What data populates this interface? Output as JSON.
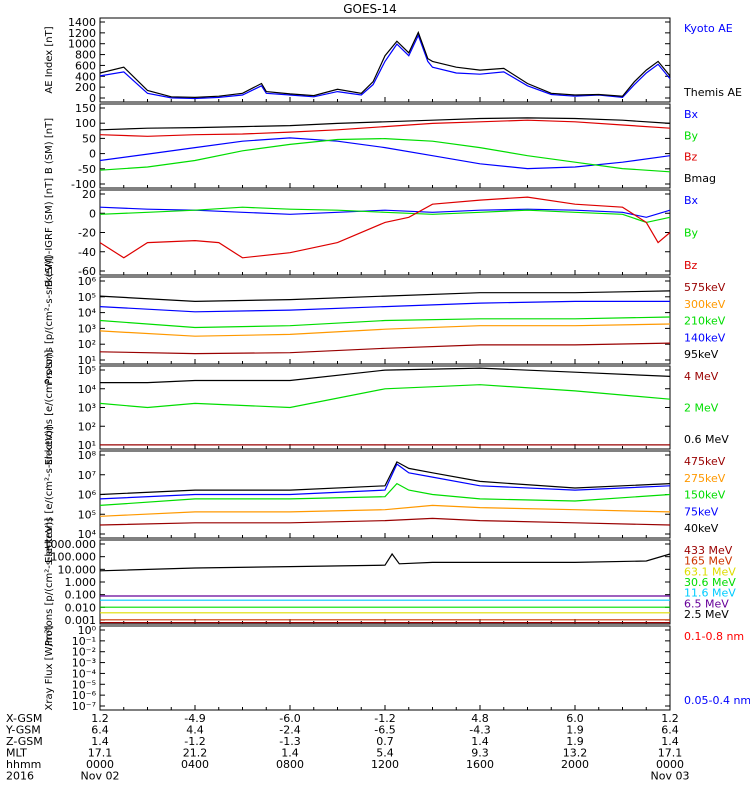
{
  "title": "GOES-14",
  "colors": {
    "black": "#000000",
    "blue": "#0000ff",
    "green": "#00dd00",
    "red": "#dd0000",
    "orange": "#ff9900",
    "darkred": "#990000",
    "cyan": "#00ccff",
    "yellow": "#dddd00",
    "brownred": "#cc3300",
    "purple": "#660099",
    "xray_red": "#ff0000",
    "xray_blue": "#0000ff"
  },
  "chart_data": [
    {
      "type": "line",
      "ylabel": "AE Index [nT]",
      "yticks": [
        "1400",
        "1200",
        "1000",
        "800",
        "600",
        "400",
        "200",
        "0"
      ],
      "ylim": [
        0,
        1450
      ],
      "legend": [
        "Kyoto AE",
        "Themis AE"
      ],
      "series": [
        {
          "name": "Kyoto AE",
          "color": "blue",
          "x": [
            0,
            1,
            2,
            3,
            4,
            5,
            6,
            6.8,
            7,
            8,
            9,
            10,
            11,
            11.5,
            12,
            12.5,
            13,
            13.4,
            13.8,
            14,
            15,
            16,
            17,
            18,
            19,
            20,
            21,
            22,
            22.5,
            23,
            23.5,
            24
          ],
          "y": [
            450,
            520,
            150,
            70,
            60,
            80,
            120,
            280,
            150,
            120,
            90,
            180,
            120,
            300,
            700,
            1000,
            800,
            1150,
            700,
            600,
            500,
            480,
            520,
            280,
            130,
            100,
            120,
            80,
            300,
            500,
            650,
            400
          ]
        },
        {
          "name": "Themis AE",
          "color": "black",
          "x": [
            0,
            1,
            2,
            3,
            4,
            5,
            6,
            6.8,
            7,
            8,
            9,
            10,
            11,
            11.5,
            12,
            12.5,
            13,
            13.4,
            13.8,
            14,
            15,
            16,
            17,
            18,
            19,
            20,
            21,
            22,
            22.5,
            23,
            23.5,
            24
          ],
          "y": [
            500,
            600,
            200,
            90,
            80,
            100,
            150,
            320,
            180,
            140,
            110,
            220,
            150,
            350,
            800,
            1050,
            850,
            1200,
            750,
            700,
            600,
            550,
            580,
            320,
            150,
            120,
            130,
            100,
            350,
            550,
            700,
            450
          ]
        }
      ]
    },
    {
      "type": "line",
      "ylabel": "B (SM) [nT]",
      "yticks": [
        "150",
        "100",
        "50",
        "0",
        "-50",
        "-100"
      ],
      "ylim": [
        -105,
        155
      ],
      "legend": [
        "Bx",
        "By",
        "Bz",
        "Bmag"
      ],
      "series": [
        {
          "name": "Bx",
          "color": "blue",
          "x": [
            0,
            2,
            4,
            6,
            8,
            10,
            12,
            14,
            16,
            18,
            20,
            22,
            24
          ],
          "y": [
            -20,
            0,
            20,
            40,
            50,
            40,
            20,
            -5,
            -30,
            -45,
            -40,
            -25,
            -5
          ]
        },
        {
          "name": "By",
          "color": "green",
          "x": [
            0,
            2,
            4,
            6,
            8,
            10,
            12,
            14,
            16,
            18,
            20,
            22,
            24
          ],
          "y": [
            -50,
            -40,
            -20,
            10,
            30,
            45,
            48,
            40,
            20,
            -5,
            -25,
            -45,
            -55
          ]
        },
        {
          "name": "Bz",
          "color": "red",
          "x": [
            0,
            2,
            4,
            6,
            8,
            10,
            12,
            14,
            16,
            18,
            20,
            22,
            24
          ],
          "y": [
            60,
            55,
            60,
            62,
            68,
            75,
            85,
            95,
            100,
            105,
            100,
            90,
            80
          ]
        },
        {
          "name": "Bmag",
          "color": "black",
          "x": [
            0,
            2,
            4,
            6,
            8,
            10,
            12,
            14,
            16,
            18,
            20,
            22,
            24
          ],
          "y": [
            75,
            80,
            82,
            85,
            88,
            95,
            100,
            105,
            110,
            112,
            110,
            105,
            95
          ]
        }
      ]
    },
    {
      "type": "line",
      "ylabel": "B (SM)-IGRF (SM) [nT]",
      "yticks": [
        "20",
        "0",
        "-20",
        "-40",
        "-60"
      ],
      "ylim": [
        -62,
        22
      ],
      "legend": [
        "Bx",
        "By",
        "Bz"
      ],
      "series": [
        {
          "name": "Bx",
          "color": "blue",
          "x": [
            0,
            2,
            4,
            6,
            8,
            10,
            12,
            14,
            16,
            18,
            20,
            22,
            23,
            24
          ],
          "y": [
            5,
            3,
            2,
            0,
            -2,
            0,
            2,
            0,
            2,
            3,
            2,
            0,
            -5,
            2
          ]
        },
        {
          "name": "By",
          "color": "green",
          "x": [
            0,
            2,
            4,
            6,
            8,
            10,
            12,
            14,
            16,
            18,
            20,
            22,
            23,
            24
          ],
          "y": [
            -2,
            0,
            2,
            5,
            3,
            2,
            0,
            -2,
            0,
            2,
            0,
            -2,
            -10,
            -5
          ]
        },
        {
          "name": "Bz",
          "color": "red",
          "x": [
            0,
            1,
            2,
            4,
            5,
            6,
            8,
            10,
            12,
            13,
            14,
            16,
            18,
            20,
            22,
            23,
            23.5,
            24
          ],
          "y": [
            -30,
            -45,
            -30,
            -28,
            -30,
            -45,
            -40,
            -30,
            -10,
            -5,
            8,
            12,
            15,
            8,
            5,
            -10,
            -30,
            -20
          ]
        }
      ]
    },
    {
      "type": "line",
      "ylabel": "Protons [p/(cm²-s-sr-keV)]",
      "yscale": "log",
      "yticks": [
        "10⁶",
        "10⁵",
        "10⁴",
        "10³",
        "10²",
        "10¹"
      ],
      "ylim": [
        1,
        6
      ],
      "legend": [
        "575keV",
        "300keV",
        "210keV",
        "140keV",
        "95keV"
      ],
      "series": [
        {
          "name": "575keV",
          "color": "darkred",
          "x": [
            0,
            4,
            8,
            12,
            16,
            20,
            24
          ],
          "y": [
            1.7,
            1.6,
            1.65,
            1.9,
            2.1,
            2.1,
            2.2
          ]
        },
        {
          "name": "300keV",
          "color": "orange",
          "x": [
            0,
            4,
            8,
            12,
            16,
            20,
            24
          ],
          "y": [
            2.9,
            2.6,
            2.7,
            3.0,
            3.2,
            3.2,
            3.3
          ]
        },
        {
          "name": "210keV",
          "color": "green",
          "x": [
            0,
            4,
            8,
            12,
            16,
            20,
            24
          ],
          "y": [
            3.5,
            3.1,
            3.2,
            3.5,
            3.6,
            3.6,
            3.7
          ]
        },
        {
          "name": "140keV",
          "color": "blue",
          "x": [
            0,
            4,
            8,
            12,
            16,
            20,
            24
          ],
          "y": [
            4.3,
            4.0,
            4.1,
            4.3,
            4.5,
            4.6,
            4.6
          ]
        },
        {
          "name": "95keV",
          "color": "black",
          "x": [
            0,
            4,
            8,
            12,
            16,
            20,
            24
          ],
          "y": [
            4.9,
            4.6,
            4.7,
            4.9,
            5.1,
            5.1,
            5.2
          ]
        }
      ]
    },
    {
      "type": "line",
      "ylabel": "Electrons [e/(cm²-s-sr)]",
      "yscale": "log",
      "yticks": [
        "10⁵",
        "10⁴",
        "10³",
        "10²",
        "10¹"
      ],
      "ylim": [
        1,
        5
      ],
      "legend": [
        "4 MeV",
        "2 MeV",
        "0.6 MeV"
      ],
      "series": [
        {
          "name": "4 MeV",
          "color": "darkred",
          "x": [
            0,
            24
          ],
          "y": [
            1.2,
            1.2
          ]
        },
        {
          "name": "2 MeV",
          "color": "green",
          "x": [
            0,
            2,
            4,
            8,
            12,
            16,
            20,
            24
          ],
          "y": [
            3.2,
            3.0,
            3.2,
            3.0,
            3.9,
            4.1,
            3.8,
            3.4
          ]
        },
        {
          "name": "0.6 MeV",
          "color": "black",
          "x": [
            0,
            2,
            4,
            8,
            12,
            16,
            20,
            24
          ],
          "y": [
            4.2,
            4.2,
            4.3,
            4.3,
            4.8,
            4.9,
            4.7,
            4.5
          ]
        }
      ]
    },
    {
      "type": "line",
      "ylabel": "Electrons [e/(cm²-s-sr-keV)]",
      "yscale": "log",
      "yticks": [
        "10⁸",
        "10⁷",
        "10⁶",
        "10⁵",
        "10⁴"
      ],
      "ylim": [
        4,
        8
      ],
      "legend": [
        "475keV",
        "275keV",
        "150keV",
        "75keV",
        "40keV"
      ],
      "series": [
        {
          "name": "475keV",
          "color": "darkred",
          "x": [
            0,
            4,
            8,
            12,
            14,
            16,
            20,
            24
          ],
          "y": [
            4.6,
            4.7,
            4.7,
            4.8,
            4.9,
            4.8,
            4.7,
            4.6
          ]
        },
        {
          "name": "275keV",
          "color": "orange",
          "x": [
            0,
            4,
            8,
            12,
            14,
            16,
            20,
            24
          ],
          "y": [
            5.0,
            5.2,
            5.2,
            5.3,
            5.5,
            5.4,
            5.3,
            5.2
          ]
        },
        {
          "name": "150keV",
          "color": "green",
          "x": [
            0,
            4,
            8,
            12,
            12.5,
            13,
            14,
            16,
            20,
            24
          ],
          "y": [
            5.5,
            5.8,
            5.8,
            5.9,
            6.5,
            6.2,
            6.0,
            5.8,
            5.7,
            6.0
          ]
        },
        {
          "name": "75keV",
          "color": "blue",
          "x": [
            0,
            4,
            8,
            12,
            12.5,
            13,
            14,
            16,
            20,
            24
          ],
          "y": [
            5.8,
            6.0,
            6.0,
            6.2,
            7.4,
            7.0,
            6.8,
            6.4,
            6.2,
            6.4
          ]
        },
        {
          "name": "40keV",
          "color": "black",
          "x": [
            0,
            4,
            8,
            12,
            12.5,
            13,
            14,
            16,
            20,
            24
          ],
          "y": [
            6.0,
            6.2,
            6.2,
            6.4,
            7.5,
            7.2,
            7.0,
            6.6,
            6.3,
            6.5
          ]
        }
      ]
    },
    {
      "type": "line",
      "ylabel": "Protons [p/(cm²-s-sr-keV)]",
      "yscale": "log",
      "yticks": [
        "1000.000",
        "100.000",
        "10.000",
        "1.000",
        "0.100",
        "0.010",
        "0.001"
      ],
      "ylim": [
        -3,
        3
      ],
      "legend": [
        "433 MeV",
        "165 MeV",
        "63.1 MeV",
        "30.6 MeV",
        "11.6 MeV",
        "6.5 MeV",
        "2.5 MeV"
      ],
      "series": [
        {
          "name": "433 MeV",
          "color": "darkred",
          "x": [
            0,
            24
          ],
          "y": [
            -2.9,
            -2.9
          ]
        },
        {
          "name": "165 MeV",
          "color": "brownred",
          "x": [
            0,
            24
          ],
          "y": [
            -2.7,
            -2.7
          ]
        },
        {
          "name": "63.1 MeV",
          "color": "yellow",
          "x": [
            0,
            24
          ],
          "y": [
            -2.2,
            -2.2
          ]
        },
        {
          "name": "30.6 MeV",
          "color": "green",
          "x": [
            0,
            24
          ],
          "y": [
            -1.8,
            -1.8
          ]
        },
        {
          "name": "11.6 MeV",
          "color": "cyan",
          "x": [
            0,
            24
          ],
          "y": [
            -1.3,
            -1.3
          ]
        },
        {
          "name": "6.5 MeV",
          "color": "purple",
          "x": [
            0,
            24
          ],
          "y": [
            -1.0,
            -1.0
          ]
        },
        {
          "name": "2.5 MeV",
          "color": "black",
          "x": [
            0,
            4,
            8,
            12,
            12.3,
            12.6,
            14,
            16,
            20,
            23,
            24
          ],
          "y": [
            0.8,
            1.0,
            1.1,
            1.2,
            2.0,
            1.3,
            1.4,
            1.4,
            1.4,
            1.5,
            2.0
          ]
        }
      ]
    },
    {
      "type": "line",
      "ylabel": "Xray Flux [W/m²]",
      "yscale": "log",
      "yticks": [
        "10⁰",
        "10⁻¹",
        "10⁻²",
        "10⁻³",
        "10⁻⁴",
        "10⁻⁵",
        "10⁻⁶",
        "10⁻⁷"
      ],
      "ylim": [
        -7,
        0
      ],
      "legend": [
        "0.1-0.8 nm",
        "0.05-0.4 nm"
      ],
      "series": []
    }
  ],
  "footer": {
    "labels": [
      "X-GSM",
      "Y-GSM",
      "Z-GSM",
      "MLT",
      "hhmm",
      "2016"
    ],
    "columns": [
      [
        "1.2",
        "6.4",
        "1.4",
        "17.1",
        "0000",
        "Nov 02"
      ],
      [
        "-4.9",
        "4.4",
        "-1.2",
        "21.2",
        "0400",
        ""
      ],
      [
        "-6.0",
        "-2.4",
        "-1.3",
        "1.4",
        "0800",
        ""
      ],
      [
        "-1.2",
        "-6.5",
        "0.7",
        "5.4",
        "1200",
        ""
      ],
      [
        "4.8",
        "-4.3",
        "1.4",
        "9.3",
        "1600",
        ""
      ],
      [
        "6.0",
        "1.9",
        "1.9",
        "13.2",
        "2000",
        ""
      ],
      [
        "1.2",
        "6.4",
        "1.4",
        "17.1",
        "0000",
        "Nov 03"
      ]
    ]
  }
}
